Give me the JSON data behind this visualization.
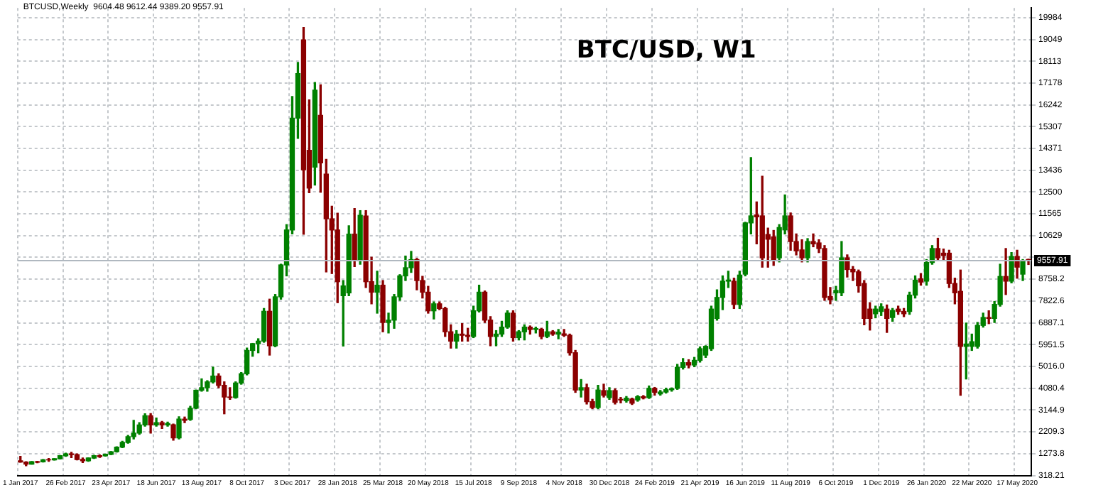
{
  "chart_data": {
    "type": "candlestick",
    "title": "BTC/USD, W1",
    "annotations": [
      "BTCUSD,Weekly  9604.48 9612.44 9389.20 9557.91"
    ],
    "categories": [
      "1 Jan 2017",
      null,
      null,
      null,
      null,
      null,
      null,
      null,
      "26 Feb 2017",
      null,
      null,
      null,
      null,
      null,
      null,
      null,
      "23 Apr 2017",
      null,
      null,
      null,
      null,
      null,
      null,
      null,
      "18 Jun 2017",
      null,
      null,
      null,
      null,
      null,
      null,
      null,
      "13 Aug 2017",
      null,
      null,
      null,
      null,
      null,
      null,
      null,
      "8 Oct 2017",
      null,
      null,
      null,
      null,
      null,
      null,
      null,
      "3 Dec 2017",
      null,
      null,
      null,
      null,
      null,
      null,
      null,
      "28 Jan 2018",
      null,
      null,
      null,
      null,
      null,
      null,
      null,
      "25 Mar 2018",
      null,
      null,
      null,
      null,
      null,
      null,
      null,
      "20 May 2018",
      null,
      null,
      null,
      null,
      null,
      null,
      null,
      "15 Jul 2018",
      null,
      null,
      null,
      null,
      null,
      null,
      null,
      "9 Sep 2018",
      null,
      null,
      null,
      null,
      null,
      null,
      null,
      "4 Nov 2018",
      null,
      null,
      null,
      null,
      null,
      null,
      null,
      "30 Dec 2018",
      null,
      null,
      null,
      null,
      null,
      null,
      null,
      "24 Feb 2019",
      null,
      null,
      null,
      null,
      null,
      null,
      null,
      "21 Apr 2019",
      null,
      null,
      null,
      null,
      null,
      null,
      null,
      "16 Jun 2019",
      null,
      null,
      null,
      null,
      null,
      null,
      null,
      "11 Aug 2019",
      null,
      null,
      null,
      null,
      null,
      null,
      null,
      "6 Oct 2019",
      null,
      null,
      null,
      null,
      null,
      null,
      null,
      "1 Dec 2019",
      null,
      null,
      null,
      null,
      null,
      null,
      null,
      "26 Jan 2020",
      null,
      null,
      null,
      null,
      null,
      null,
      null,
      "22 Mar 2020",
      null,
      null,
      null,
      null,
      null,
      null,
      null,
      "17 May 2020",
      null,
      null
    ],
    "ohlc": [
      [
        963,
        1150,
        900,
        910
      ],
      [
        910,
        920,
        750,
        820
      ],
      [
        820,
        930,
        815,
        920
      ],
      [
        920,
        935,
        880,
        900
      ],
      [
        918,
        1015,
        910,
        1010
      ],
      [
        1010,
        1060,
        940,
        1000
      ],
      [
        1000,
        1055,
        990,
        1050
      ],
      [
        1050,
        1190,
        1040,
        1180
      ],
      [
        1180,
        1290,
        1150,
        1255
      ],
      [
        1255,
        1330,
        1100,
        1230
      ],
      [
        1230,
        1260,
        1000,
        1020
      ],
      [
        1020,
        1080,
        890,
        960
      ],
      [
        960,
        1090,
        940,
        1080
      ],
      [
        1080,
        1200,
        1060,
        1180
      ],
      [
        1180,
        1215,
        1110,
        1140
      ],
      [
        1175,
        1250,
        1160,
        1240
      ],
      [
        1240,
        1360,
        1230,
        1350
      ],
      [
        1350,
        1560,
        1340,
        1550
      ],
      [
        1550,
        1800,
        1530,
        1750
      ],
      [
        1750,
        2050,
        1720,
        2000
      ],
      [
        2000,
        2700,
        1900,
        2150
      ],
      [
        2150,
        2600,
        2100,
        2500
      ],
      [
        2500,
        2980,
        2450,
        2900
      ],
      [
        2900,
        2990,
        2150,
        2500
      ],
      [
        2500,
        2800,
        2450,
        2600
      ],
      [
        2600,
        2650,
        2350,
        2500
      ],
      [
        2500,
        2620,
        2450,
        2560
      ],
      [
        2510,
        2540,
        1850,
        1950
      ],
      [
        1950,
        2850,
        1900,
        2750
      ],
      [
        2750,
        2840,
        2600,
        2700
      ],
      [
        2740,
        3300,
        2700,
        3220
      ],
      [
        3220,
        4000,
        3200,
        3990
      ],
      [
        3990,
        4480,
        3950,
        4100
      ],
      [
        4100,
        4400,
        3950,
        4350
      ],
      [
        4350,
        4980,
        4300,
        4600
      ],
      [
        4600,
        4700,
        4100,
        4200
      ],
      [
        4200,
        4350,
        2980,
        3700
      ],
      [
        3700,
        4100,
        3600,
        3680
      ],
      [
        3680,
        4350,
        3650,
        4300
      ],
      [
        4300,
        4750,
        4250,
        4700
      ],
      [
        4700,
        5800,
        4650,
        5700
      ],
      [
        5700,
        6000,
        5450,
        5990
      ],
      [
        5990,
        6200,
        5600,
        6100
      ],
      [
        6100,
        7500,
        6050,
        7380
      ],
      [
        7380,
        7900,
        5500,
        5900
      ],
      [
        5900,
        8100,
        5860,
        8000
      ],
      [
        8000,
        9400,
        7900,
        9370
      ],
      [
        9370,
        11100,
        8900,
        10870
      ],
      [
        10870,
        16600,
        10700,
        15670
      ],
      [
        15670,
        18060,
        14800,
        17580
      ],
      [
        19030,
        19560,
        10690,
        13450
      ],
      [
        14290,
        16450,
        12470,
        12670
      ],
      [
        13570,
        17200,
        12800,
        16870
      ],
      [
        15790,
        17100,
        12490,
        13750
      ],
      [
        13270,
        13900,
        9070,
        11350
      ],
      [
        11350,
        11890,
        9000,
        10870
      ],
      [
        10870,
        11590,
        7750,
        8650
      ],
      [
        8050,
        8700,
        5890,
        8470
      ],
      [
        8170,
        11050,
        8050,
        10690
      ],
      [
        10690,
        11790,
        9300,
        9600
      ],
      [
        9600,
        11700,
        9400,
        11500
      ],
      [
        11470,
        11700,
        8400,
        8650
      ],
      [
        8650,
        9700,
        7700,
        8200
      ],
      [
        8200,
        9100,
        7300,
        8500
      ],
      [
        8500,
        8700,
        6500,
        6900
      ],
      [
        6900,
        7300,
        6450,
        7000
      ],
      [
        7000,
        8100,
        6650,
        8000
      ],
      [
        8000,
        8950,
        7850,
        8900
      ],
      [
        8900,
        9750,
        8700,
        9250
      ],
      [
        9250,
        9950,
        9050,
        9600
      ],
      [
        9600,
        9650,
        8300,
        8700
      ],
      [
        8700,
        8880,
        7950,
        8200
      ],
      [
        8200,
        8450,
        7300,
        7400
      ],
      [
        7400,
        7780,
        7050,
        7700
      ],
      [
        7700,
        7780,
        7450,
        7500
      ],
      [
        7500,
        7550,
        6300,
        6500
      ],
      [
        6500,
        6800,
        5800,
        6100
      ],
      [
        6100,
        6550,
        5800,
        6400
      ],
      [
        6400,
        6850,
        6100,
        6350
      ],
      [
        6350,
        6650,
        6100,
        6300
      ],
      [
        6300,
        7600,
        6250,
        7400
      ],
      [
        7400,
        8500,
        7350,
        8200
      ],
      [
        8200,
        8250,
        6900,
        7000
      ],
      [
        7000,
        7150,
        5900,
        6300
      ],
      [
        6300,
        6550,
        5900,
        6400
      ],
      [
        6400,
        6950,
        6300,
        6700
      ],
      [
        6700,
        7400,
        6650,
        7300
      ],
      [
        7300,
        7400,
        6100,
        6250
      ],
      [
        6250,
        6550,
        6150,
        6500
      ],
      [
        6500,
        6800,
        6150,
        6700
      ],
      [
        6700,
        6750,
        6400,
        6600
      ],
      [
        6600,
        6700,
        6450,
        6640
      ],
      [
        6610,
        6650,
        6200,
        6300
      ],
      [
        6300,
        6950,
        6250,
        6500
      ],
      [
        6500,
        6550,
        6350,
        6400
      ],
      [
        6400,
        6600,
        6200,
        6480
      ],
      [
        6410,
        6600,
        6300,
        6350
      ],
      [
        6350,
        6400,
        5500,
        5600
      ],
      [
        5600,
        5700,
        3900,
        4000
      ],
      [
        4000,
        4450,
        3700,
        4100
      ],
      [
        4100,
        4250,
        3400,
        3500
      ],
      [
        3500,
        3600,
        3200,
        3250
      ],
      [
        3250,
        4200,
        3200,
        4000
      ],
      [
        3974,
        4250,
        3700,
        3774
      ],
      [
        3674,
        4100,
        3600,
        3974
      ],
      [
        3974,
        4050,
        3400,
        3474
      ],
      [
        3600,
        3680,
        3450,
        3574
      ],
      [
        3540,
        3720,
        3480,
        3650
      ],
      [
        3614,
        3650,
        3380,
        3434
      ],
      [
        3574,
        3760,
        3520,
        3714
      ],
      [
        3714,
        3760,
        3620,
        3660
      ],
      [
        3674,
        4174,
        3640,
        4074
      ],
      [
        4074,
        4110,
        3780,
        3900
      ],
      [
        3834,
        3980,
        3780,
        3914
      ],
      [
        3914,
        4080,
        3870,
        4014
      ],
      [
        4014,
        4090,
        3950,
        4060
      ],
      [
        4074,
        5100,
        4030,
        4974
      ],
      [
        4974,
        5350,
        4900,
        5174
      ],
      [
        5174,
        5300,
        4950,
        5074
      ],
      [
        5074,
        5400,
        5000,
        5274
      ],
      [
        5274,
        5850,
        5200,
        5774
      ],
      [
        5500,
        5900,
        5400,
        5874
      ],
      [
        5774,
        7600,
        5700,
        7474
      ],
      [
        7074,
        8300,
        7000,
        7974
      ],
      [
        7974,
        8900,
        7450,
        8674
      ],
      [
        8674,
        9100,
        8400,
        8720
      ],
      [
        8674,
        8800,
        7500,
        7674
      ],
      [
        7674,
        9100,
        7500,
        8934
      ],
      [
        8974,
        11200,
        8900,
        11174
      ],
      [
        11174,
        13974,
        10700,
        11474
      ],
      [
        11514,
        12074,
        10274,
        11434
      ],
      [
        11474,
        13174,
        9274,
        9674
      ],
      [
        10674,
        10950,
        9274,
        10474
      ],
      [
        10574,
        10850,
        9350,
        9574
      ],
      [
        9674,
        11100,
        9500,
        10974
      ],
      [
        10874,
        12374,
        10700,
        11474
      ],
      [
        11474,
        11600,
        10000,
        10374
      ],
      [
        10374,
        10700,
        9800,
        9974
      ],
      [
        10014,
        10450,
        9500,
        9674
      ],
      [
        9674,
        10500,
        9500,
        10374
      ],
      [
        10374,
        10700,
        10150,
        10274
      ],
      [
        10314,
        10450,
        9900,
        10074
      ],
      [
        10074,
        10200,
        7850,
        7974
      ],
      [
        8014,
        8400,
        7700,
        7874
      ],
      [
        8174,
        8450,
        7850,
        8274
      ],
      [
        8174,
        10374,
        8050,
        9674
      ],
      [
        9674,
        9800,
        8850,
        9174
      ],
      [
        9174,
        9300,
        8700,
        9074
      ],
      [
        9074,
        9150,
        8200,
        8474
      ],
      [
        8574,
        8700,
        6800,
        7074
      ],
      [
        7474,
        7750,
        6574,
        7074
      ],
      [
        7274,
        7600,
        7100,
        7474
      ],
      [
        7374,
        7700,
        7200,
        7574
      ],
      [
        7474,
        7650,
        6474,
        7074
      ],
      [
        7114,
        7500,
        6950,
        7414
      ],
      [
        7474,
        7600,
        7250,
        7374
      ],
      [
        7374,
        7500,
        7150,
        7274
      ],
      [
        7374,
        8200,
        7250,
        8074
      ],
      [
        8074,
        8900,
        7950,
        8714
      ],
      [
        8774,
        9000,
        8500,
        8634
      ],
      [
        8674,
        9600,
        8500,
        9474
      ],
      [
        9474,
        10200,
        9400,
        10074
      ],
      [
        10074,
        10514,
        9550,
        9674
      ],
      [
        9874,
        10050,
        9600,
        9774
      ],
      [
        9874,
        10000,
        8400,
        8574
      ],
      [
        8574,
        8800,
        7700,
        8174
      ],
      [
        8234,
        9150,
        3774,
        5874
      ],
      [
        5874,
        6874,
        4474,
        5974
      ],
      [
        5874,
        6400,
        5700,
        6074
      ],
      [
        5874,
        6900,
        5800,
        6774
      ],
      [
        6774,
        7300,
        6700,
        7114
      ],
      [
        7114,
        7400,
        6850,
        7074
      ],
      [
        7074,
        7800,
        6900,
        7674
      ],
      [
        7674,
        9400,
        7600,
        8874
      ],
      [
        8874,
        10074,
        8100,
        8674
      ],
      [
        8674,
        9900,
        8600,
        9734
      ],
      [
        9734,
        10000,
        8800,
        9274
      ],
      [
        8974,
        9600,
        8700,
        9514
      ],
      [
        9604.48,
        9612.44,
        9389.2,
        9557.91
      ]
    ],
    "colors": [
      "#8b0000",
      "#8b0000",
      "#008000",
      "#8b0000",
      "#008000",
      "#8b0000",
      "#008000",
      "#008000",
      "#008000",
      "#8b0000",
      "#8b0000",
      "#8b0000",
      "#008000",
      "#008000",
      "#8b0000",
      "#008000",
      "#008000",
      "#008000",
      "#008000",
      "#008000",
      "#008000",
      "#008000",
      "#008000",
      "#8b0000",
      "#008000",
      "#8b0000",
      "#008000",
      "#8b0000",
      "#008000",
      "#8b0000",
      "#008000",
      "#008000",
      "#008000",
      "#008000",
      "#008000",
      "#8b0000",
      "#8b0000",
      "#8b0000",
      "#008000",
      "#008000",
      "#008000",
      "#008000",
      "#008000",
      "#008000",
      "#8b0000",
      "#008000",
      "#008000",
      "#008000",
      "#008000",
      "#008000",
      "#8b0000",
      "#8b0000",
      "#008000",
      "#8b0000",
      "#8b0000",
      "#8b0000",
      "#8b0000",
      "#008000",
      "#008000",
      "#8b0000",
      "#008000",
      "#8b0000",
      "#8b0000",
      "#008000",
      "#8b0000",
      "#008000",
      "#008000",
      "#008000",
      "#008000",
      "#008000",
      "#8b0000",
      "#8b0000",
      "#8b0000",
      "#008000",
      "#8b0000",
      "#8b0000",
      "#8b0000",
      "#008000",
      "#8b0000",
      "#8b0000",
      "#008000",
      "#008000",
      "#8b0000",
      "#8b0000",
      "#008000",
      "#008000",
      "#008000",
      "#8b0000",
      "#008000",
      "#008000",
      "#8b0000",
      "#008000",
      "#8b0000",
      "#008000",
      "#8b0000",
      "#008000",
      "#8b0000",
      "#8b0000",
      "#8b0000",
      "#008000",
      "#8b0000",
      "#8b0000",
      "#008000",
      "#8b0000",
      "#008000",
      "#8b0000",
      "#8b0000",
      "#008000",
      "#8b0000",
      "#008000",
      "#8b0000",
      "#008000",
      "#8b0000",
      "#008000",
      "#008000",
      "#008000",
      "#008000",
      "#008000",
      "#8b0000",
      "#008000",
      "#008000",
      "#008000",
      "#008000",
      "#008000",
      "#008000",
      "#008000",
      "#8b0000",
      "#008000",
      "#008000",
      "#008000",
      "#8b0000",
      "#8b0000",
      "#8b0000",
      "#8b0000",
      "#008000",
      "#008000",
      "#8b0000",
      "#8b0000",
      "#8b0000",
      "#008000",
      "#8b0000",
      "#8b0000",
      "#8b0000",
      "#8b0000",
      "#008000",
      "#008000",
      "#8b0000",
      "#8b0000",
      "#8b0000",
      "#8b0000",
      "#8b0000",
      "#008000",
      "#008000",
      "#8b0000",
      "#008000",
      "#8b0000",
      "#8b0000",
      "#008000",
      "#008000",
      "#8b0000",
      "#008000",
      "#008000",
      "#8b0000",
      "#8b0000",
      "#8b0000",
      "#8b0000",
      "#8b0000",
      "#008000",
      "#008000",
      "#008000",
      "#008000",
      "#8b0000",
      "#008000",
      "#008000",
      "#8b0000",
      "#008000",
      "#8b0000",
      "#008000",
      "#8b0000"
    ],
    "ylim": [
      318.21,
      20400
    ],
    "yticks": [
      318.21,
      1273.8,
      2209.3,
      3144.9,
      4080.4,
      {
        "value": 5016.0,
        "label": "5016.0"
      },
      5951.5,
      6887.1,
      7822.6,
      8758.2,
      {
        "value": 9693.7,
        "label": null
      },
      10629,
      11565,
      12500,
      13436,
      14371,
      15307,
      16242,
      17178,
      18113,
      19049,
      19984
    ],
    "ref_lines": [
      {
        "axis": "y",
        "value": 9557.91,
        "label": "9557.91",
        "color": "#b0b8c0"
      }
    ],
    "grid": true,
    "legend": false
  }
}
